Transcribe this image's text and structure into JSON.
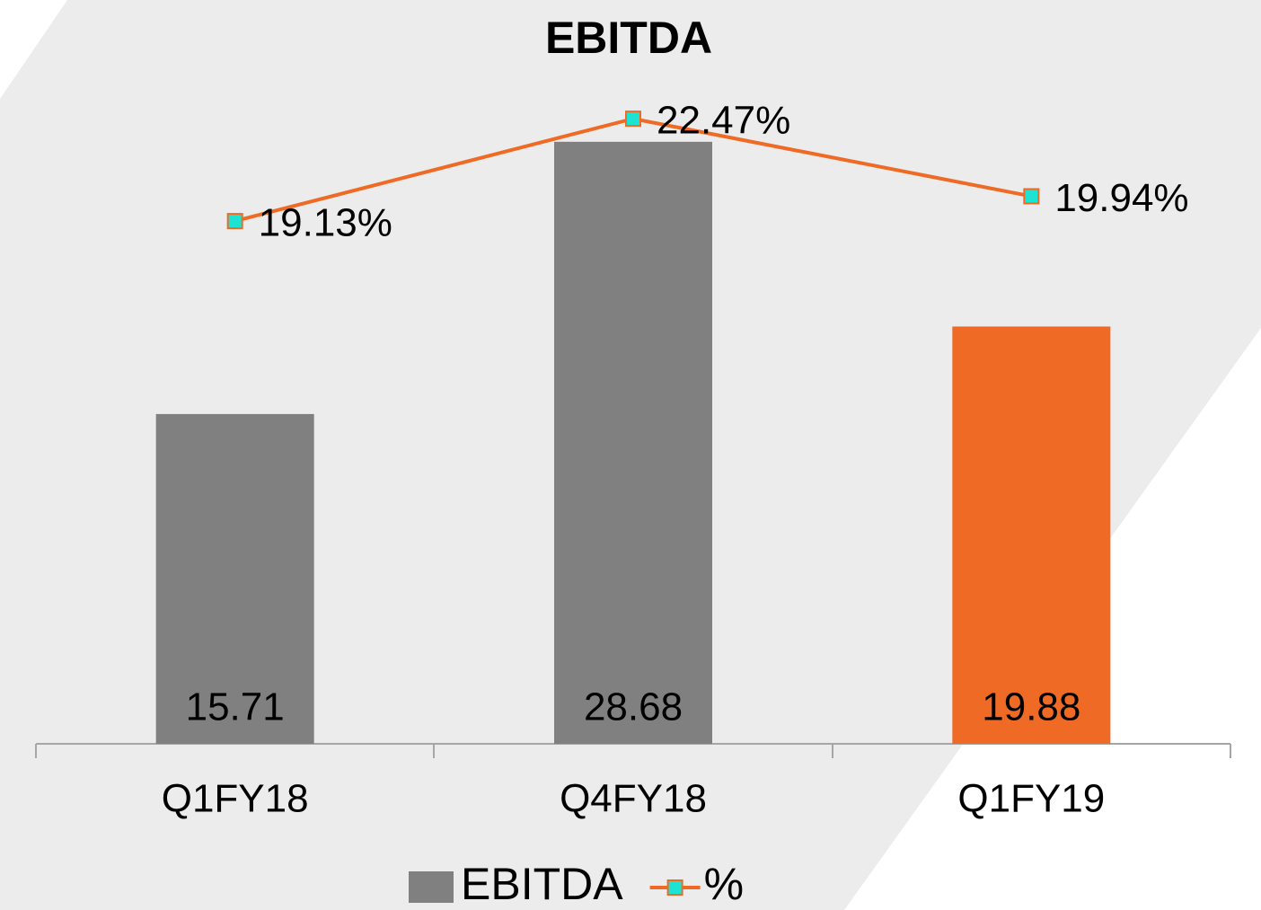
{
  "chart_data": {
    "type": "bar_line",
    "title": "EBITDA",
    "categories": [
      "Q1FY18",
      "Q4FY18",
      "Q1FY19"
    ],
    "series": [
      {
        "name": "EBITDA",
        "type": "bar",
        "color": "#808080",
        "colors": [
          "#808080",
          "#808080",
          "#ee6a25"
        ],
        "values": [
          15.71,
          28.68,
          19.88
        ]
      },
      {
        "name": "%",
        "type": "line",
        "axis": "y2",
        "color": "#ee6a25",
        "marker_color": "#1de3d3",
        "values": [
          19.13,
          22.47,
          19.94
        ],
        "value_labels": [
          "19.13%",
          "22.47%",
          "19.94%"
        ]
      }
    ],
    "ylim": [
      0,
      30
    ],
    "y2lim": [
      2.08,
      22.62
    ],
    "grid": false,
    "legend": "bottom"
  }
}
